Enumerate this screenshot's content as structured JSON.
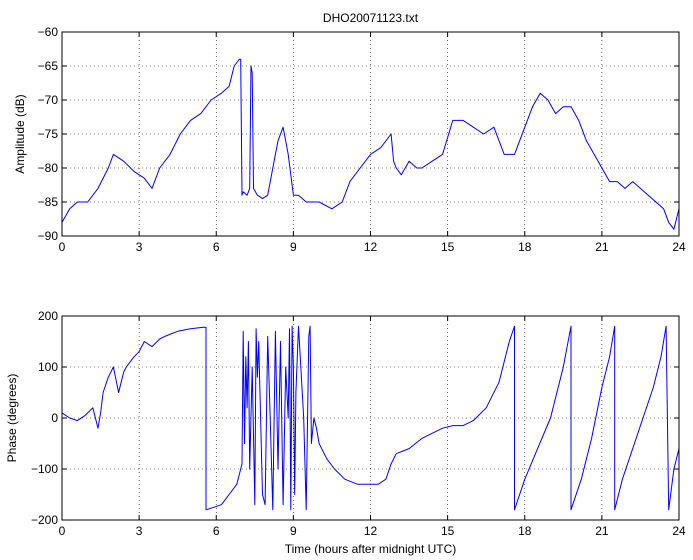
{
  "chart_data": [
    {
      "type": "line",
      "title": "DHO20071123.txt",
      "xlabel": "",
      "ylabel": "Amplitude (dB)",
      "xlim": [
        0,
        24
      ],
      "ylim": [
        -90,
        -60
      ],
      "xticks": [
        0,
        3,
        6,
        9,
        12,
        15,
        18,
        21,
        24
      ],
      "yticks": [
        -90,
        -85,
        -80,
        -75,
        -70,
        -65,
        -60
      ],
      "xtick_labels": [
        "0",
        "3",
        "6",
        "9",
        "12",
        "15",
        "18",
        "21",
        "24"
      ],
      "ytick_labels": [
        "−90",
        "−85",
        "−80",
        "−75",
        "−70",
        "−65",
        "−60"
      ],
      "grid": true,
      "series": [
        {
          "color": "#0000ff",
          "x": [
            0,
            0.3,
            0.6,
            1.0,
            1.4,
            1.8,
            2.0,
            2.4,
            2.8,
            3.2,
            3.5,
            3.8,
            4.2,
            4.6,
            5.0,
            5.4,
            5.8,
            6.2,
            6.5,
            6.7,
            6.9,
            6.95,
            7.0,
            7.05,
            7.2,
            7.3,
            7.35,
            7.4,
            7.45,
            7.6,
            7.8,
            8.0,
            8.2,
            8.4,
            8.6,
            8.8,
            9.0,
            9.2,
            9.5,
            10.0,
            10.5,
            10.9,
            11.2,
            11.6,
            12.0,
            12.4,
            12.8,
            12.9,
            13.0,
            13.2,
            13.5,
            13.8,
            14.0,
            14.4,
            14.8,
            15.2,
            15.6,
            16.0,
            16.4,
            16.8,
            17.2,
            17.6,
            18.0,
            18.3,
            18.6,
            18.9,
            19.2,
            19.5,
            19.8,
            20.1,
            20.4,
            20.7,
            21.0,
            21.3,
            21.6,
            21.9,
            22.2,
            22.5,
            22.8,
            23.1,
            23.4,
            23.6,
            23.8,
            24.0
          ],
          "y": [
            -88,
            -86,
            -85,
            -85,
            -83,
            -80,
            -78,
            -79,
            -80.5,
            -81.5,
            -83,
            -80,
            -78,
            -75,
            -73,
            -72,
            -70,
            -69,
            -68,
            -65,
            -64,
            -64,
            -84,
            -83.5,
            -84,
            -83,
            -65,
            -66,
            -83,
            -84,
            -84.5,
            -84,
            -80,
            -76,
            -74,
            -78,
            -84,
            -84,
            -85,
            -85,
            -86,
            -85,
            -82,
            -80,
            -78,
            -77,
            -75,
            -79,
            -80,
            -81,
            -79,
            -80,
            -80,
            -79,
            -78,
            -73,
            -73,
            -74,
            -75,
            -74,
            -78,
            -78,
            -74,
            -71,
            -69,
            -70,
            -72,
            -71,
            -71,
            -73,
            -76,
            -78,
            -80,
            -82,
            -82,
            -83,
            -82,
            -83,
            -84,
            -85,
            -86,
            -88,
            -89,
            -86
          ]
        }
      ]
    },
    {
      "type": "line",
      "title": "",
      "xlabel": "Time (hours after midnight UTC)",
      "ylabel": "Phase (degrees)",
      "xlim": [
        0,
        24
      ],
      "ylim": [
        -200,
        200
      ],
      "xticks": [
        0,
        3,
        6,
        9,
        12,
        15,
        18,
        21,
        24
      ],
      "yticks": [
        -200,
        -100,
        0,
        100,
        200
      ],
      "xtick_labels": [
        "0",
        "3",
        "6",
        "9",
        "12",
        "15",
        "18",
        "21",
        "24"
      ],
      "ytick_labels": [
        "−200",
        "−100",
        "0",
        "100",
        "200"
      ],
      "grid": true,
      "series": [
        {
          "color": "#0000ff",
          "x": [
            0,
            0.3,
            0.6,
            0.9,
            1.2,
            1.4,
            1.5,
            1.6,
            1.8,
            2.0,
            2.2,
            2.4,
            2.5,
            2.8,
            3.0,
            3.2,
            3.5,
            3.8,
            4.0,
            4.5,
            5.0,
            5.5,
            5.6,
            5.6,
            5.9,
            6.2,
            6.5,
            6.8,
            7.0,
            7.05,
            7.1,
            7.15,
            7.2,
            7.25,
            7.3,
            7.4,
            7.5,
            7.55,
            7.6,
            7.65,
            7.8,
            7.9,
            8.0,
            8.1,
            8.2,
            8.3,
            8.4,
            8.5,
            8.6,
            8.7,
            8.8,
            8.85,
            8.9,
            8.95,
            9.0,
            9.05,
            9.1,
            9.2,
            9.4,
            9.5,
            9.6,
            9.65,
            9.7,
            9.8,
            9.9,
            10.0,
            10.3,
            10.6,
            11.0,
            11.5,
            12.0,
            12.3,
            12.6,
            12.8,
            13.0,
            13.5,
            14.0,
            14.4,
            14.8,
            15.2,
            15.6,
            16.0,
            16.5,
            17.0,
            17.4,
            17.6,
            17.6,
            18.0,
            18.5,
            19.0,
            19.5,
            19.8,
            19.8,
            20.2,
            20.6,
            21.0,
            21.3,
            21.5,
            21.5,
            21.8,
            22.2,
            22.6,
            23.0,
            23.3,
            23.5,
            23.6,
            23.8,
            24.0
          ],
          "y": [
            10,
            0,
            -5,
            5,
            20,
            -20,
            10,
            50,
            80,
            100,
            50,
            90,
            100,
            120,
            130,
            150,
            140,
            155,
            160,
            170,
            175,
            178,
            178,
            -180,
            -175,
            -170,
            -150,
            -130,
            -90,
            170,
            -50,
            120,
            20,
            150,
            -100,
            100,
            -170,
            175,
            80,
            150,
            -150,
            -170,
            160,
            0,
            -180,
            170,
            -100,
            150,
            -170,
            100,
            0,
            175,
            -180,
            180,
            100,
            -150,
            50,
            180,
            0,
            -180,
            160,
            180,
            -50,
            0,
            -20,
            -50,
            -80,
            -100,
            -120,
            -130,
            -130,
            -130,
            -120,
            -90,
            -70,
            -60,
            -40,
            -30,
            -20,
            -15,
            -15,
            -5,
            20,
            70,
            150,
            180,
            -180,
            -120,
            -60,
            0,
            100,
            180,
            -180,
            -120,
            -40,
            60,
            120,
            180,
            -180,
            -120,
            -60,
            0,
            60,
            120,
            180,
            -180,
            -100,
            -60
          ]
        }
      ]
    }
  ]
}
